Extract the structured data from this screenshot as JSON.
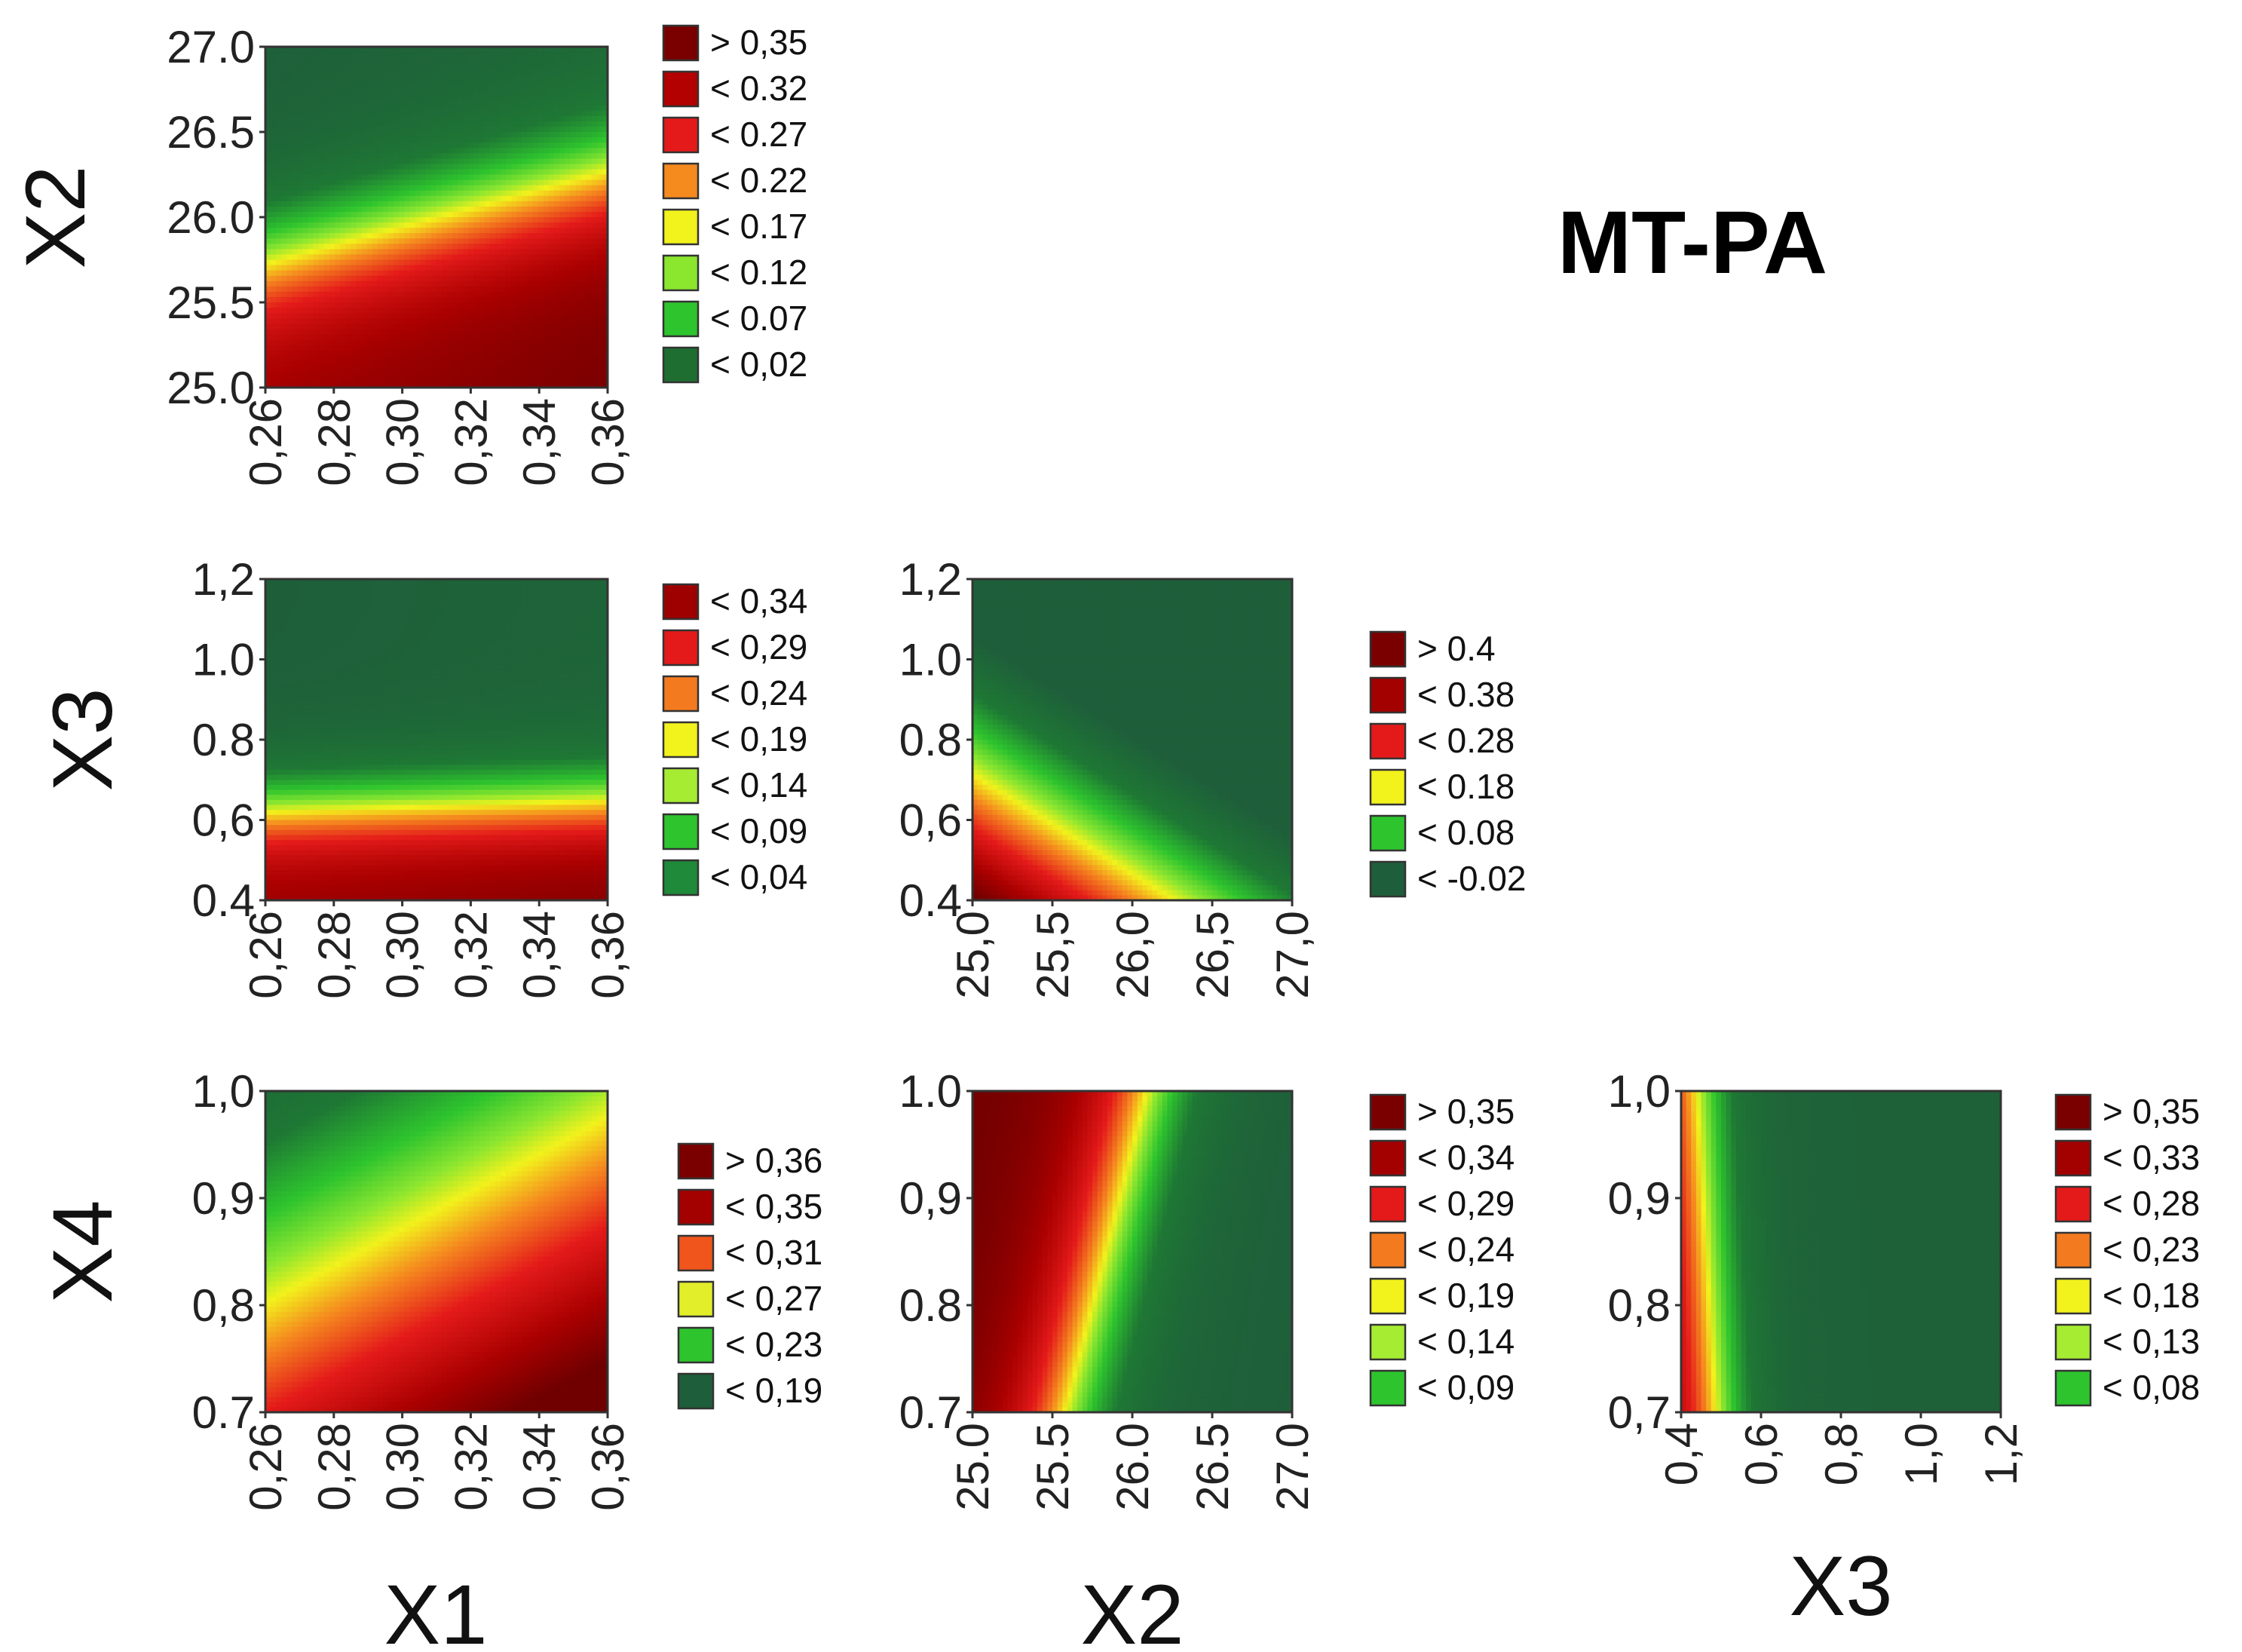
{
  "figure_title": "MT-PA",
  "chart_data": [
    {
      "type": "heatmap",
      "id": "x2_vs_x1",
      "xlabel": "",
      "ylabel": "X2",
      "xlim": [
        0.26,
        0.36
      ],
      "ylim": [
        25.0,
        27.0
      ],
      "x_ticks": [
        "0,26",
        "0,28",
        "0,30",
        "0,32",
        "0,34",
        "0,36"
      ],
      "y_ticks": [
        "25.0",
        "25.5",
        "26.0",
        "26.5",
        "27.0"
      ],
      "legend": [
        {
          "label": "> 0,35",
          "color": "#7a0000"
        },
        {
          "label": "< 0.32",
          "color": "#b30000"
        },
        {
          "label": "< 0.27",
          "color": "#e41a1a"
        },
        {
          "label": "< 0.22",
          "color": "#f58a1f"
        },
        {
          "label": "< 0.17",
          "color": "#f2f21c"
        },
        {
          "label": "< 0.12",
          "color": "#8be62e"
        },
        {
          "label": "< 0.07",
          "color": "#2ec42e"
        },
        {
          "label": "< 0,02",
          "color": "#1e6e32"
        }
      ]
    },
    {
      "type": "heatmap",
      "id": "x3_vs_x1",
      "xlabel": "",
      "ylabel": "X3",
      "xlim": [
        0.26,
        0.36
      ],
      "ylim": [
        0.4,
        1.2
      ],
      "x_ticks": [
        "0,26",
        "0,28",
        "0,30",
        "0,32",
        "0,34",
        "0,36"
      ],
      "y_ticks": [
        "0.4",
        "0,6",
        "0.8",
        "1.0",
        "1,2"
      ],
      "legend": [
        {
          "label": "< 0,34",
          "color": "#9e0000"
        },
        {
          "label": "< 0,29",
          "color": "#e41a1a"
        },
        {
          "label": "< 0,24",
          "color": "#f47a1f"
        },
        {
          "label": "< 0,19",
          "color": "#f2f21c"
        },
        {
          "label": "< 0,14",
          "color": "#a6ec33"
        },
        {
          "label": "< 0,09",
          "color": "#2ec42e"
        },
        {
          "label": "< 0,04",
          "color": "#1e8a3a"
        }
      ]
    },
    {
      "type": "heatmap",
      "id": "x3_vs_x2",
      "xlabel": "",
      "ylabel": "",
      "xlim": [
        25.0,
        27.0
      ],
      "ylim": [
        0.4,
        1.2
      ],
      "x_ticks": [
        "25,0",
        "25,5",
        "26,0",
        "26,5",
        "27,0"
      ],
      "y_ticks": [
        "0.4",
        "0,6",
        "0.8",
        "1.0",
        "1,2"
      ],
      "legend": [
        {
          "label": "> 0.4",
          "color": "#7a0000"
        },
        {
          "label": "< 0.38",
          "color": "#a30000"
        },
        {
          "label": "< 0.28",
          "color": "#e41a1a"
        },
        {
          "label": "< 0.18",
          "color": "#f2f21c"
        },
        {
          "label": "< 0.08",
          "color": "#2ec42e"
        },
        {
          "label": "< -0.02",
          "color": "#1e5e3a"
        }
      ]
    },
    {
      "type": "heatmap",
      "id": "x4_vs_x1",
      "xlabel": "X1",
      "ylabel": "X4",
      "xlim": [
        0.26,
        0.36
      ],
      "ylim": [
        0.7,
        1.0
      ],
      "x_ticks": [
        "0,26",
        "0,28",
        "0,30",
        "0,32",
        "0,34",
        "0,36"
      ],
      "y_ticks": [
        "0.7",
        "0,8",
        "0,9",
        "1,0"
      ],
      "legend": [
        {
          "label": "> 0,36",
          "color": "#7a0000"
        },
        {
          "label": "< 0,35",
          "color": "#a30000"
        },
        {
          "label": "< 0,31",
          "color": "#f0551c"
        },
        {
          "label": "< 0,27",
          "color": "#e2ee2a"
        },
        {
          "label": "< 0,23",
          "color": "#2ec42e"
        },
        {
          "label": "< 0,19",
          "color": "#1e5e3a"
        }
      ]
    },
    {
      "type": "heatmap",
      "id": "x4_vs_x2",
      "xlabel": "X2",
      "ylabel": "",
      "xlim": [
        25.0,
        27.0
      ],
      "ylim": [
        0.7,
        1.0
      ],
      "x_ticks": [
        "25.0",
        "25.5",
        "26.0",
        "26.5",
        "27.0"
      ],
      "y_ticks": [
        "0.7",
        "0.8",
        "0,9",
        "1.0"
      ],
      "legend": [
        {
          "label": "> 0,35",
          "color": "#7a0000"
        },
        {
          "label": "< 0,34",
          "color": "#a30000"
        },
        {
          "label": "< 0,29",
          "color": "#e41a1a"
        },
        {
          "label": "< 0,24",
          "color": "#f47a1f"
        },
        {
          "label": "< 0,19",
          "color": "#f2f21c"
        },
        {
          "label": "< 0,14",
          "color": "#a6ec33"
        },
        {
          "label": "< 0,09",
          "color": "#2ec42e"
        }
      ]
    },
    {
      "type": "heatmap",
      "id": "x4_vs_x3",
      "xlabel": "X3",
      "ylabel": "",
      "xlim": [
        0.4,
        1.2
      ],
      "ylim": [
        0.7,
        1.0
      ],
      "x_ticks": [
        "0,4",
        "0,6",
        "0,8",
        "1,0",
        "1,2"
      ],
      "y_ticks": [
        "0,7",
        "0,8",
        "0,9",
        "1,0"
      ],
      "legend": [
        {
          "label": "> 0,35",
          "color": "#7a0000"
        },
        {
          "label": "< 0,33",
          "color": "#a30000"
        },
        {
          "label": "< 0,28",
          "color": "#e41a1a"
        },
        {
          "label": "< 0,23",
          "color": "#f47a1f"
        },
        {
          "label": "< 0,18",
          "color": "#f2f21c"
        },
        {
          "label": "< 0,13",
          "color": "#a6ec33"
        },
        {
          "label": "< 0,08",
          "color": "#2ec42e"
        }
      ]
    }
  ]
}
